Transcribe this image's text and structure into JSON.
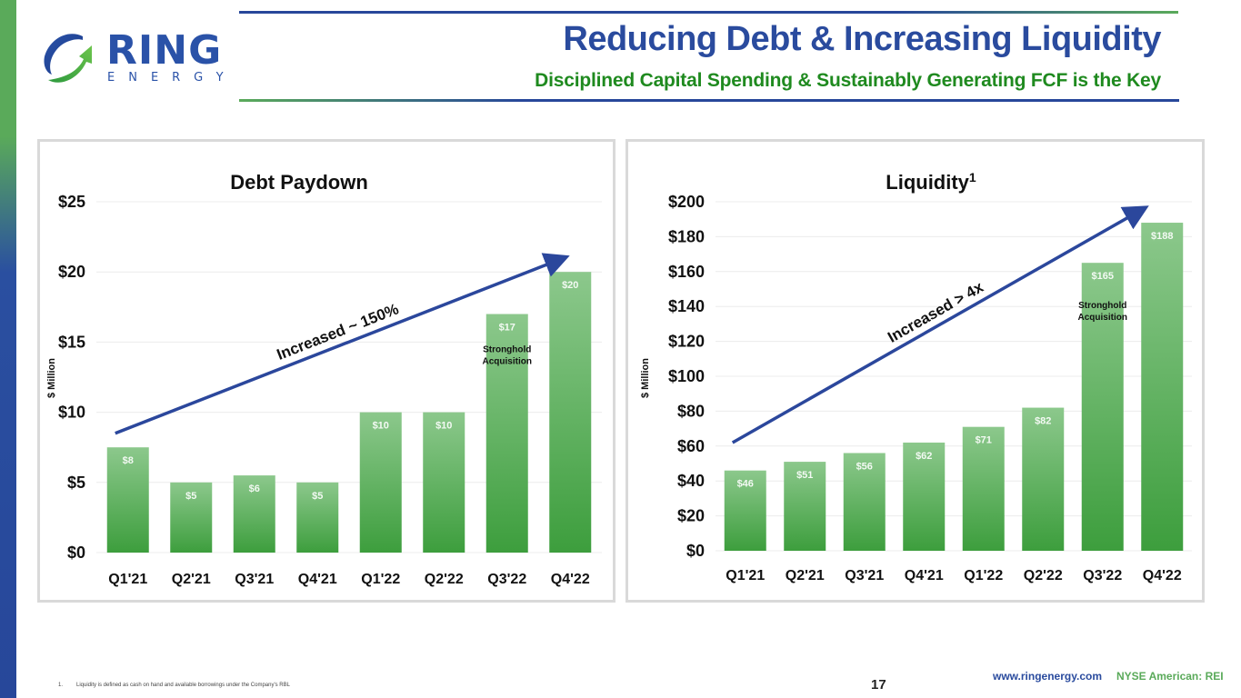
{
  "header": {
    "logo": {
      "brand": "RING",
      "sub": "ENERGY"
    },
    "title": "Reducing Debt & Increasing Liquidity",
    "subtitle": "Disciplined Capital Spending & Sustainably Generating FCF is the Key"
  },
  "colors": {
    "brand_blue": "#2a4b9e",
    "brand_green": "#1f8a1f",
    "bar_top": "#8cc88c",
    "bar_bottom": "#3d9e3d",
    "trend_arrow": "#2b479c"
  },
  "chart_data": [
    {
      "type": "bar",
      "title": "Debt Paydown",
      "title_superscript": "",
      "ylabel": "$ Million",
      "xlabel": "",
      "categories": [
        "Q1'21",
        "Q2'21",
        "Q3'21",
        "Q4'21",
        "Q1'22",
        "Q2'22",
        "Q3'22",
        "Q4'22"
      ],
      "values": [
        7.5,
        5,
        5.5,
        5,
        10,
        10,
        17,
        20
      ],
      "data_labels": [
        "$8",
        "$5",
        "$6",
        "$5",
        "$10",
        "$10",
        "$17",
        "$20"
      ],
      "ylim": [
        0,
        25
      ],
      "yticks": [
        0,
        5,
        10,
        15,
        20,
        25
      ],
      "ytick_labels": [
        "$0",
        "$5",
        "$10",
        "$15",
        "$20",
        "$25"
      ],
      "grid": true,
      "annotations": [
        {
          "text": "Stronghold",
          "category": "Q3'22"
        },
        {
          "text": "Acquisition",
          "category": "Q3'22"
        }
      ],
      "trend_label": "Increased ~ 150%",
      "trend_from": [
        0,
        8.5
      ],
      "trend_to": [
        7.1,
        21
      ]
    },
    {
      "type": "bar",
      "title": "Liquidity",
      "title_superscript": "1",
      "ylabel": "$ Million",
      "xlabel": "",
      "categories": [
        "Q1'21",
        "Q2'21",
        "Q3'21",
        "Q4'21",
        "Q1'22",
        "Q2'22",
        "Q3'22",
        "Q4'22"
      ],
      "values": [
        46,
        51,
        56,
        62,
        71,
        82,
        165,
        188
      ],
      "data_labels": [
        "$46",
        "$51",
        "$56",
        "$62",
        "$71",
        "$82",
        "$165",
        "$188"
      ],
      "ylim": [
        0,
        200
      ],
      "yticks": [
        0,
        20,
        40,
        60,
        80,
        100,
        120,
        140,
        160,
        180,
        200
      ],
      "ytick_labels": [
        "$0",
        "$20",
        "$40",
        "$60",
        "$80",
        "$100",
        "$120",
        "$140",
        "$160",
        "$180",
        "$200"
      ],
      "grid": true,
      "annotations": [
        {
          "text": "Stronghold",
          "category": "Q3'22"
        },
        {
          "text": "Acquisition",
          "category": "Q3'22"
        }
      ],
      "trend_label": "Increased > 4x",
      "trend_from": [
        0,
        62
      ],
      "trend_to": [
        6.9,
        196
      ]
    }
  ],
  "footer": {
    "footnote_number": "1.",
    "footnote_text": "Liquidity is defined as cash on hand and available borrowings under the Company's RBL",
    "page_number": "17",
    "website": "www.ringenergy.com",
    "ticker": "NYSE American: REI"
  }
}
